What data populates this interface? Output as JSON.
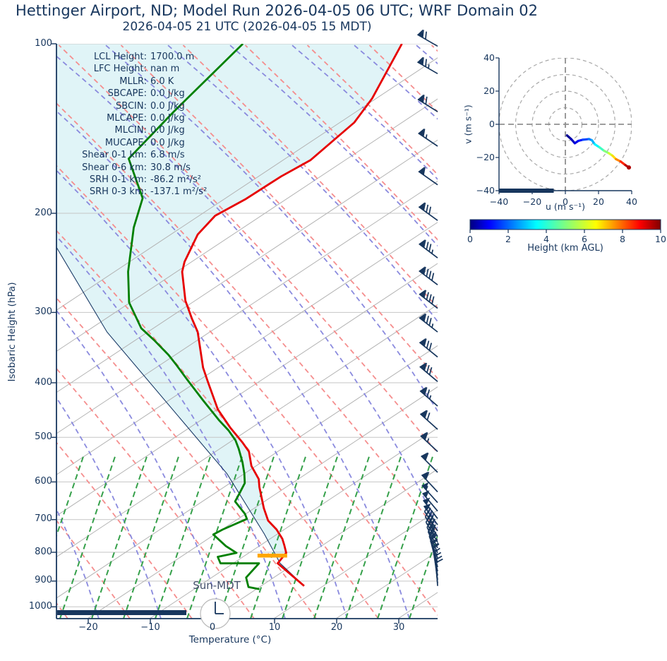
{
  "title": "Hettinger Airport, ND; Model Run 2026-04-05 06 UTC; WRF Domain 02",
  "subtitle": "2026-04-05 21 UTC  (2026-04-05 15 MDT)",
  "colors": {
    "navy": "#17365d",
    "temperature_line": "#e60000",
    "dewpoint_line": "#008000",
    "parcel_line": "#1a3a66",
    "shade_fill": "#e0f4f7",
    "dry_adiabat": "#f58e8e",
    "moist_adiabat": "#8a8ade",
    "mixing_ratio": "#35a04a",
    "isotherm": "#b3b3b3",
    "gridline": "#c6c6c6",
    "lcl_marker": "#ffa600",
    "barb": "#17365d",
    "ring_gray": "#a8a8a8"
  },
  "stats": [
    {
      "label": "LCL Height:",
      "value": "1700.0 m"
    },
    {
      "label": "LFC Height:",
      "value": "nan m"
    },
    {
      "label": "MLLR:",
      "value": "6.0 K"
    },
    {
      "label": "SBCAPE:",
      "value": "0.0 J/kg"
    },
    {
      "label": "SBCIN:",
      "value": "0.0 J/kg"
    },
    {
      "label": "MLCAPE:",
      "value": "0.0 J/kg"
    },
    {
      "label": "MLCIN:",
      "value": "0.0 J/kg"
    },
    {
      "label": "MUCAPE:",
      "value": "0.0 J/kg"
    },
    {
      "label": "Shear 0-1 km:",
      "value": "6.8 m/s"
    },
    {
      "label": "Shear 0-6 km:",
      "value": "30.8 m/s"
    },
    {
      "label": "SRH 0-1 km:",
      "value": "-86.2 m²/s²"
    },
    {
      "label": "SRH 0-3 km:",
      "value": "-137.1 m²/s²"
    }
  ],
  "skewt": {
    "ylabel": "Isobaric Height (hPa)",
    "xlabel": "Temperature (°C)",
    "pressure_ticks": [
      100,
      200,
      300,
      400,
      500,
      600,
      700,
      800,
      900,
      1000
    ],
    "temp_ticks": [
      -20,
      -10,
      0,
      10,
      20,
      30
    ],
    "sun_label": "Sun-MDT",
    "clock_time": "15:00"
  },
  "hodograph": {
    "xlabel": "u (m s⁻¹)",
    "ylabel": "v (m s⁻¹)",
    "u_ticks": [
      -40,
      -20,
      0,
      20,
      40
    ],
    "v_ticks": [
      -40,
      -20,
      0,
      20,
      40
    ],
    "ring_radii": [
      10,
      20,
      30,
      40
    ]
  },
  "colorbar": {
    "label": "Height (km AGL)",
    "ticks": [
      0,
      2,
      4,
      6,
      8,
      10
    ],
    "min": 0,
    "max": 10
  },
  "chart_data": {
    "type": "skewt-log-p sounding with hodograph",
    "pressure_range_hPa": [
      100,
      1050
    ],
    "temperature_axis_degC": [
      -25,
      36
    ],
    "temperature_profile_p_T": [
      [
        100,
        -62.0
      ],
      [
        125,
        -58.0
      ],
      [
        138,
        -57.0
      ],
      [
        161,
        -58.0
      ],
      [
        172,
        -60.1
      ],
      [
        189,
        -62.2
      ],
      [
        202,
        -64.4
      ],
      [
        218,
        -64.2
      ],
      [
        244,
        -61.9
      ],
      [
        254,
        -60.7
      ],
      [
        286,
        -55.5
      ],
      [
        307,
        -51.7
      ],
      [
        325,
        -48.5
      ],
      [
        376,
        -41.9
      ],
      [
        398,
        -38.9
      ],
      [
        446,
        -32.8
      ],
      [
        481,
        -27.8
      ],
      [
        510,
        -23.6
      ],
      [
        530,
        -21.0
      ],
      [
        562,
        -18.3
      ],
      [
        593,
        -15.0
      ],
      [
        613,
        -13.6
      ],
      [
        668,
        -9.5
      ],
      [
        703,
        -6.8
      ],
      [
        729,
        -4.0
      ],
      [
        757,
        -1.6
      ],
      [
        778,
        -0.2
      ],
      [
        802,
        1.3
      ],
      [
        837,
        1.6
      ],
      [
        918,
        9.5
      ]
    ],
    "dewpoint_profile_p_T": [
      [
        100,
        -87.6
      ],
      [
        132,
        -87.8
      ],
      [
        160,
        -87.5
      ],
      [
        188,
        -78.9
      ],
      [
        212,
        -75.6
      ],
      [
        254,
        -69.4
      ],
      [
        288,
        -64.3
      ],
      [
        320,
        -58.2
      ],
      [
        336,
        -54.2
      ],
      [
        357,
        -49.5
      ],
      [
        372,
        -46.6
      ],
      [
        395,
        -42.5
      ],
      [
        430,
        -36.6
      ],
      [
        466,
        -30.9
      ],
      [
        486,
        -27.7
      ],
      [
        506,
        -25.0
      ],
      [
        524,
        -23.1
      ],
      [
        554,
        -20.3
      ],
      [
        580,
        -18.2
      ],
      [
        603,
        -16.6
      ],
      [
        629,
        -15.8
      ],
      [
        650,
        -15.2
      ],
      [
        684,
        -11.6
      ],
      [
        698,
        -10.5
      ],
      [
        729,
        -12.7
      ],
      [
        744,
        -13.4
      ],
      [
        780,
        -9.5
      ],
      [
        802,
        -6.7
      ],
      [
        815,
        -9.1
      ],
      [
        837,
        -7.6
      ],
      [
        837,
        -1.4
      ],
      [
        887,
        -1.2
      ],
      [
        922,
        0.7
      ],
      [
        930,
        2.8
      ]
    ],
    "parcel_profile_p_T": [
      [
        229,
        -85.1
      ],
      [
        325,
        -63.1
      ],
      [
        580,
        -21.0
      ],
      [
        742,
        -5.3
      ],
      [
        837,
        2.0
      ],
      [
        918,
        9.5
      ]
    ],
    "lcl_marker": {
      "pressure": 811,
      "temp": -0.5
    },
    "wind_barbs_p_spd_dir": [
      [
        101,
        35,
        300
      ],
      [
        113,
        38,
        300
      ],
      [
        132,
        35,
        302
      ],
      [
        152,
        33,
        304
      ],
      [
        178,
        30,
        305
      ],
      [
        206,
        40,
        306
      ],
      [
        240,
        43,
        307
      ],
      [
        268,
        45,
        307
      ],
      [
        295,
        45,
        308
      ],
      [
        325,
        43,
        308
      ],
      [
        360,
        42,
        309
      ],
      [
        398,
        40,
        310
      ],
      [
        440,
        38,
        311
      ],
      [
        484,
        36,
        312
      ],
      [
        530,
        34,
        313
      ],
      [
        577,
        32,
        315
      ],
      [
        625,
        30,
        317
      ],
      [
        653,
        28,
        318
      ],
      [
        676,
        27,
        320
      ],
      [
        697,
        26,
        322
      ],
      [
        715,
        25,
        324
      ],
      [
        733,
        24,
        326
      ],
      [
        750,
        22,
        328
      ],
      [
        768,
        20,
        330
      ],
      [
        786,
        18,
        333
      ],
      [
        802,
        16,
        336
      ],
      [
        819,
        14,
        339
      ],
      [
        835,
        12,
        342
      ],
      [
        850,
        10,
        345
      ],
      [
        865,
        9,
        348
      ],
      [
        880,
        8,
        350
      ],
      [
        895,
        7,
        352
      ],
      [
        908,
        7,
        354
      ],
      [
        918,
        6,
        356
      ]
    ],
    "hodograph_u_v_km": [
      [
        1.0,
        -6.7,
        0.0
      ],
      [
        3.5,
        -8.9,
        0.4
      ],
      [
        5.7,
        -11.4,
        0.8
      ],
      [
        7.8,
        -10.0,
        1.2
      ],
      [
        10.6,
        -9.3,
        1.7
      ],
      [
        14.2,
        -8.9,
        2.2
      ],
      [
        16.0,
        -9.6,
        2.7
      ],
      [
        17.7,
        -12.0,
        3.3
      ],
      [
        20.6,
        -13.9,
        4.0
      ],
      [
        23.4,
        -16.0,
        4.7
      ],
      [
        26.2,
        -17.4,
        5.4
      ],
      [
        28.4,
        -18.9,
        6.2
      ],
      [
        30.5,
        -21.0,
        7.0
      ],
      [
        33.3,
        -22.4,
        7.9
      ],
      [
        36.2,
        -24.6,
        8.9
      ],
      [
        38.3,
        -26.0,
        10.0
      ]
    ],
    "hodograph_axis_range": [
      -40,
      40
    ],
    "surface_bar_u_extent": [
      -40,
      -7
    ]
  }
}
